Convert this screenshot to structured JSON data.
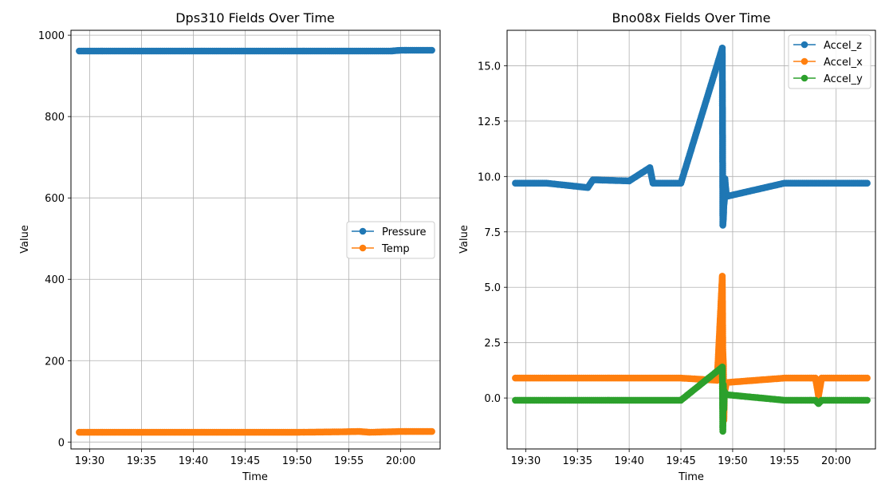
{
  "chart_data": [
    {
      "type": "line",
      "title": "Dps310 Fields Over Time",
      "xlabel": "Time",
      "ylabel": "Value",
      "x_start": "19:29",
      "x_end": "20:03",
      "x_ticks": [
        "19:30",
        "19:35",
        "19:40",
        "19:45",
        "19:50",
        "19:55",
        "20:00"
      ],
      "y_ticks": [
        "0",
        "200",
        "400",
        "600",
        "800",
        "1000"
      ],
      "ylim": [
        -17,
        1012
      ],
      "grid": true,
      "legend_position": "center-right",
      "series": [
        {
          "name": "Pressure",
          "color": "#1f77b4",
          "x": [
            "19:29",
            "19:35",
            "19:40",
            "19:45",
            "19:50",
            "19:55",
            "19:59",
            "20:00",
            "20:03"
          ],
          "values": [
            961,
            961,
            961,
            961,
            961,
            961,
            961,
            963,
            963
          ]
        },
        {
          "name": "Temp",
          "color": "#ff7f0e",
          "x": [
            "19:29",
            "19:35",
            "19:40",
            "19:45",
            "19:50",
            "19:54",
            "19:56",
            "19:57",
            "20:00",
            "20:03"
          ],
          "values": [
            24,
            24,
            24,
            24,
            24,
            25,
            26,
            24,
            26,
            26
          ]
        }
      ]
    },
    {
      "type": "line",
      "title": "Bno08x Fields Over Time",
      "xlabel": "Time",
      "ylabel": "Value",
      "x_start": "19:29",
      "x_end": "20:03",
      "x_ticks": [
        "19:30",
        "19:35",
        "19:40",
        "19:45",
        "19:50",
        "19:55",
        "20:00"
      ],
      "y_ticks": [
        "0.0",
        "2.5",
        "5.0",
        "7.5",
        "10.0",
        "12.5",
        "15.0"
      ],
      "ylim": [
        -2.3,
        16.6
      ],
      "grid": true,
      "legend_position": "top-right",
      "series": [
        {
          "name": "Accel_z",
          "color": "#1f77b4",
          "x": [
            "19:29",
            "19:32",
            "19:36",
            "19:36.5",
            "19:40",
            "19:42",
            "19:42.3",
            "19:45",
            "19:49",
            "19:49.05",
            "19:49.1",
            "19:49.15",
            "19:49.2",
            "19:49.25",
            "19:49.4",
            "19:55",
            "20:00",
            "20:03"
          ],
          "values": [
            9.7,
            9.7,
            9.5,
            9.85,
            9.8,
            10.4,
            9.7,
            9.7,
            15.8,
            7.8,
            8.05,
            8.7,
            8.9,
            9.9,
            9.1,
            9.7,
            9.7,
            9.7
          ]
        },
        {
          "name": "Accel_x",
          "color": "#ff7f0e",
          "x": [
            "19:29",
            "19:35",
            "19:40",
            "19:45",
            "19:48.5",
            "19:49",
            "19:49.05",
            "19:49.1",
            "19:49.15",
            "19:49.2",
            "19:49.4",
            "19:55",
            "19:58",
            "19:58.3",
            "19:58.6",
            "20:03"
          ],
          "values": [
            0.9,
            0.9,
            0.9,
            0.9,
            0.8,
            5.5,
            2.1,
            1.6,
            -1.0,
            0.2,
            0.7,
            0.9,
            0.9,
            0.1,
            0.9,
            0.9
          ]
        },
        {
          "name": "Accel_y",
          "color": "#2ca02c",
          "x": [
            "19:29",
            "19:35",
            "19:40",
            "19:45",
            "19:49",
            "19:49.05",
            "19:49.1",
            "19:49.15",
            "19:49.2",
            "19:49.4",
            "19:55",
            "19:58",
            "19:58.3",
            "19:58.6",
            "20:03"
          ],
          "values": [
            -0.1,
            -0.1,
            -0.1,
            -0.1,
            1.4,
            -1.5,
            0.6,
            -0.5,
            0.3,
            0.15,
            -0.1,
            -0.1,
            -0.25,
            -0.1,
            -0.1
          ]
        }
      ]
    }
  ]
}
